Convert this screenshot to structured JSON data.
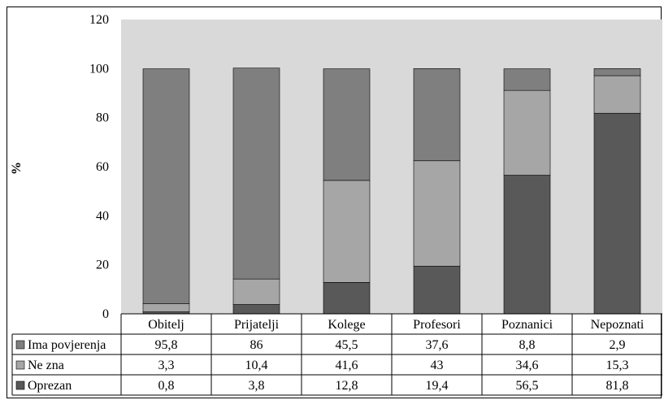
{
  "chart_data": {
    "type": "bar",
    "stacked": true,
    "ylabel": "%",
    "xlabel": "",
    "ylim": [
      0,
      120
    ],
    "yticks": [
      "0",
      "20",
      "40",
      "60",
      "80",
      "100",
      "120"
    ],
    "categories": [
      "Obitelj",
      "Prijatelji",
      "Kolege",
      "Profesori",
      "Poznanici",
      "Nepoznati"
    ],
    "series": [
      {
        "name": "Ima povjerenja",
        "values": [
          95.8,
          86,
          45.5,
          37.6,
          8.8,
          2.9
        ],
        "labels": [
          "95,8",
          "86",
          "45,5",
          "37,6",
          "8,8",
          "2,9"
        ],
        "color": "#7f7f7f"
      },
      {
        "name": "Ne zna",
        "values": [
          3.3,
          10.4,
          41.6,
          43,
          34.6,
          15.3
        ],
        "labels": [
          "3,3",
          "10,4",
          "41,6",
          "43",
          "34,6",
          "15,3"
        ],
        "color": "#a6a6a6"
      },
      {
        "name": "Oprezan",
        "values": [
          0.8,
          3.8,
          12.8,
          19.4,
          56.5,
          81.8
        ],
        "labels": [
          "0,8",
          "3,8",
          "12,8",
          "19,4",
          "56,5",
          "81,8"
        ],
        "color": "#595959"
      }
    ],
    "plot_background": "#d9d9d9",
    "grid": false,
    "legend": "data-table-left"
  }
}
